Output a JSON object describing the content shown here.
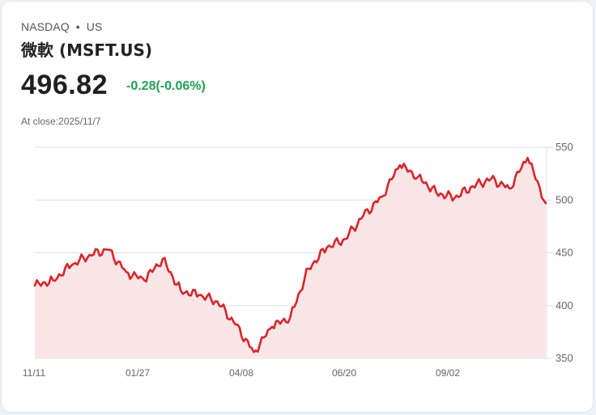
{
  "header": {
    "exchange": "NASDAQ",
    "separator": "•",
    "market": "US",
    "name": "微軟 (MSFT.US)",
    "price": "496.82",
    "change": "-0.28(-0.06%)",
    "close_label": "At close:2025/11/7"
  },
  "colors": {
    "line": "#d9252b",
    "fill": "#fbe6e7",
    "change_text": "#1fa152",
    "grid": "#e2e2e2"
  },
  "chart_data": {
    "type": "area",
    "title": "微軟 (MSFT.US)",
    "xlabel": "",
    "ylabel": "",
    "ylim": [
      350,
      550
    ],
    "grid": true,
    "legend": null,
    "y_ticks": [
      550,
      500,
      450,
      400,
      350
    ],
    "x_ticks": [
      "11/11",
      "01/27",
      "04/08",
      "06/20",
      "09/02"
    ],
    "x": [
      "11/11",
      "11/25",
      "12/09",
      "12/23",
      "01/07",
      "01/21",
      "01/27",
      "02/04",
      "02/18",
      "03/04",
      "03/18",
      "04/01",
      "04/08",
      "04/22",
      "05/06",
      "05/20",
      "06/03",
      "06/20",
      "07/03",
      "07/17",
      "07/31",
      "08/14",
      "08/28",
      "09/02",
      "09/16",
      "09/30",
      "10/14",
      "10/28",
      "11/07"
    ],
    "values": [
      419,
      424,
      438,
      448,
      453,
      432,
      424,
      444,
      414,
      410,
      404,
      382,
      356,
      380,
      389,
      435,
      455,
      463,
      485,
      503,
      533,
      522,
      507,
      502,
      513,
      520,
      511,
      540,
      497
    ]
  }
}
